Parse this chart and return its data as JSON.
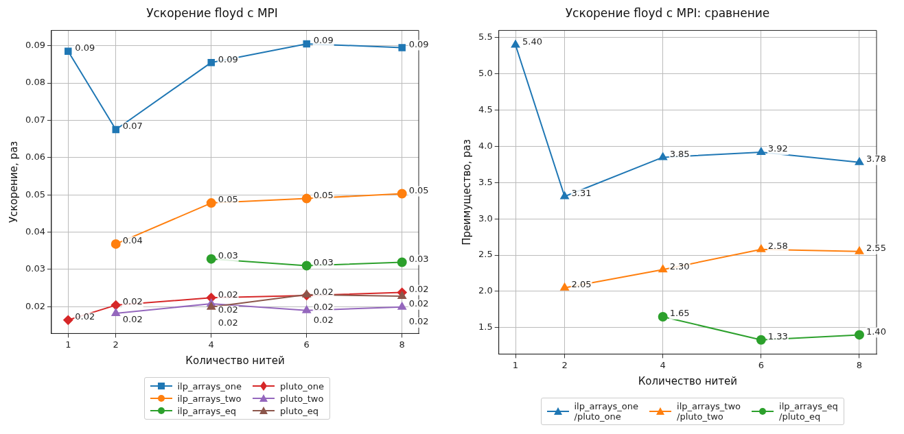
{
  "chart_data": [
    {
      "type": "line",
      "title": "Ускорение floyd с MPI",
      "xlabel": "Количество нитей",
      "ylabel": "Ускорение, раз",
      "xlim": [
        0.65,
        8.35
      ],
      "xticks": [
        1,
        2,
        4,
        6,
        8
      ],
      "ylim": [
        0.0128,
        0.0941
      ],
      "yticks": [
        0.02,
        0.03,
        0.04,
        0.05,
        0.06,
        0.07,
        0.08,
        0.09
      ],
      "grid": true,
      "legend": "bottom",
      "line_style": "solid",
      "series": [
        {
          "name": "ilp_arrays_one",
          "color": "#1f77b4",
          "marker": "square",
          "x": [
            1,
            2,
            4,
            6,
            8
          ],
          "values": [
            0.0885,
            0.0675,
            0.0855,
            0.0905,
            0.0895
          ],
          "value_labels": [
            "0.09",
            "0.07",
            "0.09",
            "0.09",
            "0.09"
          ]
        },
        {
          "name": "ilp_arrays_two",
          "color": "#ff7f0e",
          "marker": "circle",
          "x": [
            2,
            4,
            6,
            8
          ],
          "values": [
            0.0368,
            0.0478,
            0.049,
            0.0503
          ],
          "value_labels": [
            "0.04",
            "0.05",
            "0.05",
            "0.05"
          ]
        },
        {
          "name": "ilp_arrays_eq",
          "color": "#2ca02c",
          "marker": "circle",
          "x": [
            4,
            6,
            8
          ],
          "values": [
            0.0328,
            0.031,
            0.0319
          ],
          "value_labels": [
            "0.03",
            "0.03",
            "0.03"
          ]
        },
        {
          "name": "pluto_one",
          "color": "#d62728",
          "marker": "diamond",
          "x": [
            1,
            2,
            4,
            6,
            8
          ],
          "values": [
            0.0164,
            0.0204,
            0.0224,
            0.023,
            0.0238
          ],
          "value_labels": [
            "0.02",
            "0.02",
            "0.02",
            "0.02",
            "0.02"
          ]
        },
        {
          "name": "pluto_two",
          "color": "#9467bd",
          "marker": "triangle",
          "x": [
            2,
            4,
            6,
            8
          ],
          "values": [
            0.0182,
            0.0208,
            0.019,
            0.0199
          ],
          "value_labels": [
            "0.02",
            "0.02",
            "0.02",
            "0.02"
          ]
        },
        {
          "name": "pluto_eq",
          "color": "#8c564b",
          "marker": "triangle",
          "x": [
            4,
            6,
            8
          ],
          "values": [
            0.0199,
            0.0232,
            0.0228
          ],
          "value_labels": [
            "0.02",
            "0.02",
            "0.02"
          ]
        }
      ]
    },
    {
      "type": "line",
      "title": "Ускорение floyd с MPI: сравнение",
      "xlabel": "Количество нитей",
      "ylabel": "Преимущество, раз",
      "xlim": [
        0.66,
        8.35
      ],
      "xticks": [
        1,
        2,
        4,
        6,
        8
      ],
      "ylim": [
        1.135,
        5.6
      ],
      "yticks": [
        {
          "value": 1.5,
          "label": "1.5"
        },
        {
          "value": 2,
          "label": "2.0"
        },
        {
          "value": 2.5,
          "label": "2.5"
        },
        {
          "value": 3,
          "label": "3.0"
        },
        {
          "value": 3.5,
          "label": "3.5"
        },
        {
          "value": 4,
          "label": "4.0"
        },
        {
          "value": 4.5,
          "label": "4.5"
        },
        {
          "value": 5,
          "label": "5.0"
        },
        {
          "value": 5.5,
          "label": "5.5"
        }
      ],
      "grid": true,
      "legend": "bottom",
      "line_style": "solid",
      "series": [
        {
          "name": "ilp_arrays_one\n/pluto_one",
          "color": "#1f77b4",
          "marker": "triangle",
          "x": [
            1,
            2,
            4,
            6,
            8
          ],
          "values": [
            5.4,
            3.31,
            3.85,
            3.92,
            3.78
          ],
          "value_labels": [
            "5.40",
            "3.31",
            "3.85",
            "3.92",
            "3.78"
          ]
        },
        {
          "name": "ilp_arrays_two\n/pluto_two",
          "color": "#ff7f0e",
          "marker": "triangle",
          "x": [
            2,
            4,
            6,
            8
          ],
          "values": [
            2.05,
            2.3,
            2.58,
            2.55
          ],
          "value_labels": [
            "2.05",
            "2.30",
            "2.58",
            "2.55"
          ]
        },
        {
          "name": "ilp_arrays_eq\n/pluto_eq",
          "color": "#2ca02c",
          "marker": "circle",
          "x": [
            4,
            6,
            8
          ],
          "values": [
            1.65,
            1.33,
            1.4
          ],
          "value_labels": [
            "1.65",
            "1.33",
            "1.40"
          ]
        }
      ]
    }
  ]
}
